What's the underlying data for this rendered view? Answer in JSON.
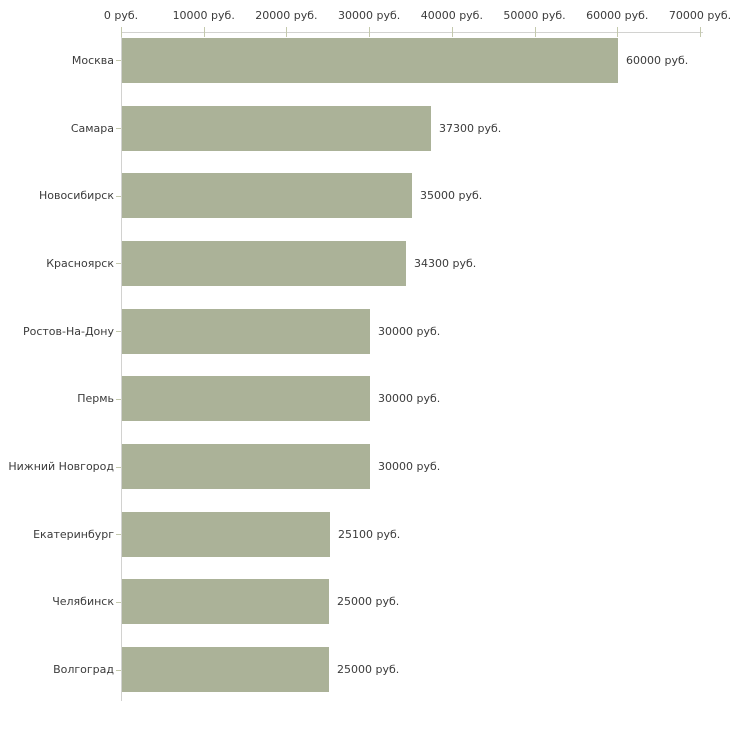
{
  "chart_data": {
    "type": "bar",
    "orientation": "horizontal",
    "title": "",
    "xlabel": "",
    "ylabel": "",
    "unit": "руб.",
    "xlim": [
      0,
      70000
    ],
    "grid": false,
    "legend": null,
    "categories": [
      "Москва",
      "Самара",
      "Новосибирск",
      "Красноярск",
      "Ростов-На-Дону",
      "Пермь",
      "Нижний Новгород",
      "Екатеринбург",
      "Челябинск",
      "Волгоград"
    ],
    "values": [
      60000,
      37300,
      35000,
      34300,
      30000,
      30000,
      30000,
      25100,
      25000,
      25000
    ],
    "value_labels": [
      "60000 руб.",
      "37300 руб.",
      "35000 руб.",
      "34300 руб.",
      "30000 руб.",
      "30000 руб.",
      "30000 руб.",
      "25100 руб.",
      "25000 руб.",
      "25000 руб."
    ],
    "x_ticks": [
      {
        "value": 0,
        "label": "0 руб."
      },
      {
        "value": 10000,
        "label": "10000 руб."
      },
      {
        "value": 20000,
        "label": "20000 руб."
      },
      {
        "value": 30000,
        "label": "30000 руб."
      },
      {
        "value": 40000,
        "label": "40000 руб."
      },
      {
        "value": 50000,
        "label": "50000 руб."
      },
      {
        "value": 60000,
        "label": "60000 руб."
      },
      {
        "value": 70000,
        "label": "70000 руб."
      }
    ],
    "colors": {
      "bar_fill": "#abb298",
      "axis_line": "#d2d2d0",
      "tick_mark": "#c4c9ad",
      "text": "#3b3b3b",
      "background": "#ffffff"
    }
  }
}
